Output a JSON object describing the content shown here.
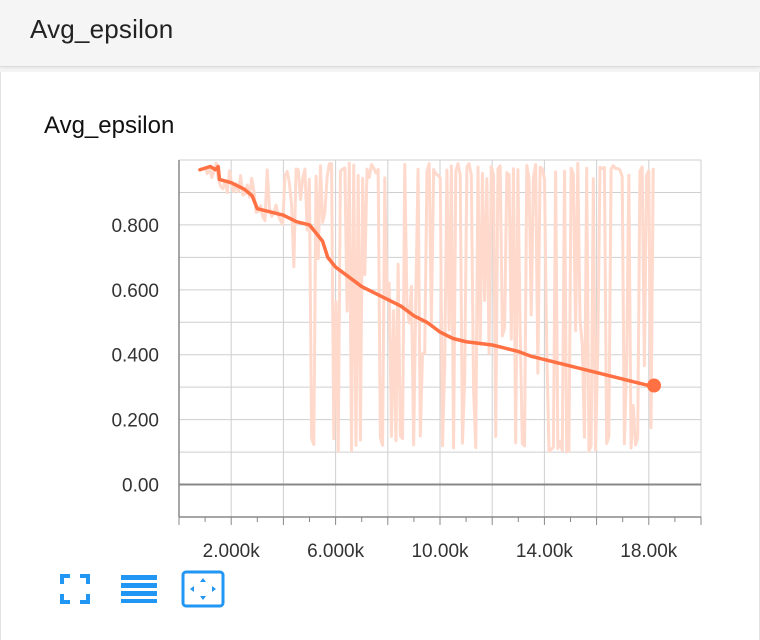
{
  "header": {
    "title": "Avg_epsilon"
  },
  "card": {
    "title": "Avg_epsilon"
  },
  "colors": {
    "smoothed": "#ff7043",
    "raw": "#ffd9cc",
    "grid": "#cfcfcf",
    "axis": "#888888",
    "accent": "#2196f3"
  },
  "buttons": [
    {
      "name": "expand-chart-button",
      "icon": "fullscreen-icon"
    },
    {
      "name": "toggle-log-scale-button",
      "icon": "lines-icon"
    },
    {
      "name": "fit-domain-button",
      "icon": "fit-to-data-icon"
    }
  ],
  "chart_data": {
    "type": "line",
    "title": "Avg_epsilon",
    "xlim": [
      0,
      20000
    ],
    "ylim": [
      -0.1,
      1.0
    ],
    "x_ticks": [
      2000,
      6000,
      10000,
      14000,
      18000
    ],
    "x_tick_labels": [
      "2.000k",
      "6.000k",
      "10.00k",
      "14.00k",
      "18.00k"
    ],
    "y_ticks": [
      0.0,
      0.2,
      0.4,
      0.6,
      0.8
    ],
    "y_tick_labels": [
      "0.00",
      "0.200",
      "0.400",
      "0.600",
      "0.800"
    ],
    "grid": true,
    "series": [
      {
        "role": "smoothed",
        "x": [
          800,
          1200,
          1400,
          1500,
          1550,
          2000,
          2500,
          2800,
          3000,
          3500,
          4000,
          4500,
          5000,
          5300,
          5500,
          5700,
          6000,
          6500,
          7000,
          7500,
          8000,
          8500,
          9000,
          9500,
          10000,
          10500,
          11000,
          11500,
          12000,
          12500,
          13000,
          13500,
          14000,
          14500,
          15000,
          15500,
          16000,
          16500,
          17000,
          17500,
          18000,
          18200
        ],
        "y": [
          0.97,
          0.98,
          0.97,
          0.98,
          0.94,
          0.93,
          0.91,
          0.89,
          0.85,
          0.84,
          0.83,
          0.81,
          0.8,
          0.77,
          0.75,
          0.7,
          0.67,
          0.64,
          0.61,
          0.59,
          0.57,
          0.55,
          0.52,
          0.5,
          0.47,
          0.45,
          0.44,
          0.435,
          0.43,
          0.42,
          0.41,
          0.395,
          0.385,
          0.375,
          0.365,
          0.355,
          0.345,
          0.335,
          0.325,
          0.315,
          0.305,
          0.305
        ]
      }
    ],
    "raw_noise": {
      "x_start": 1000,
      "x_end": 18200,
      "max": 0.99,
      "min": 0.1
    }
  }
}
